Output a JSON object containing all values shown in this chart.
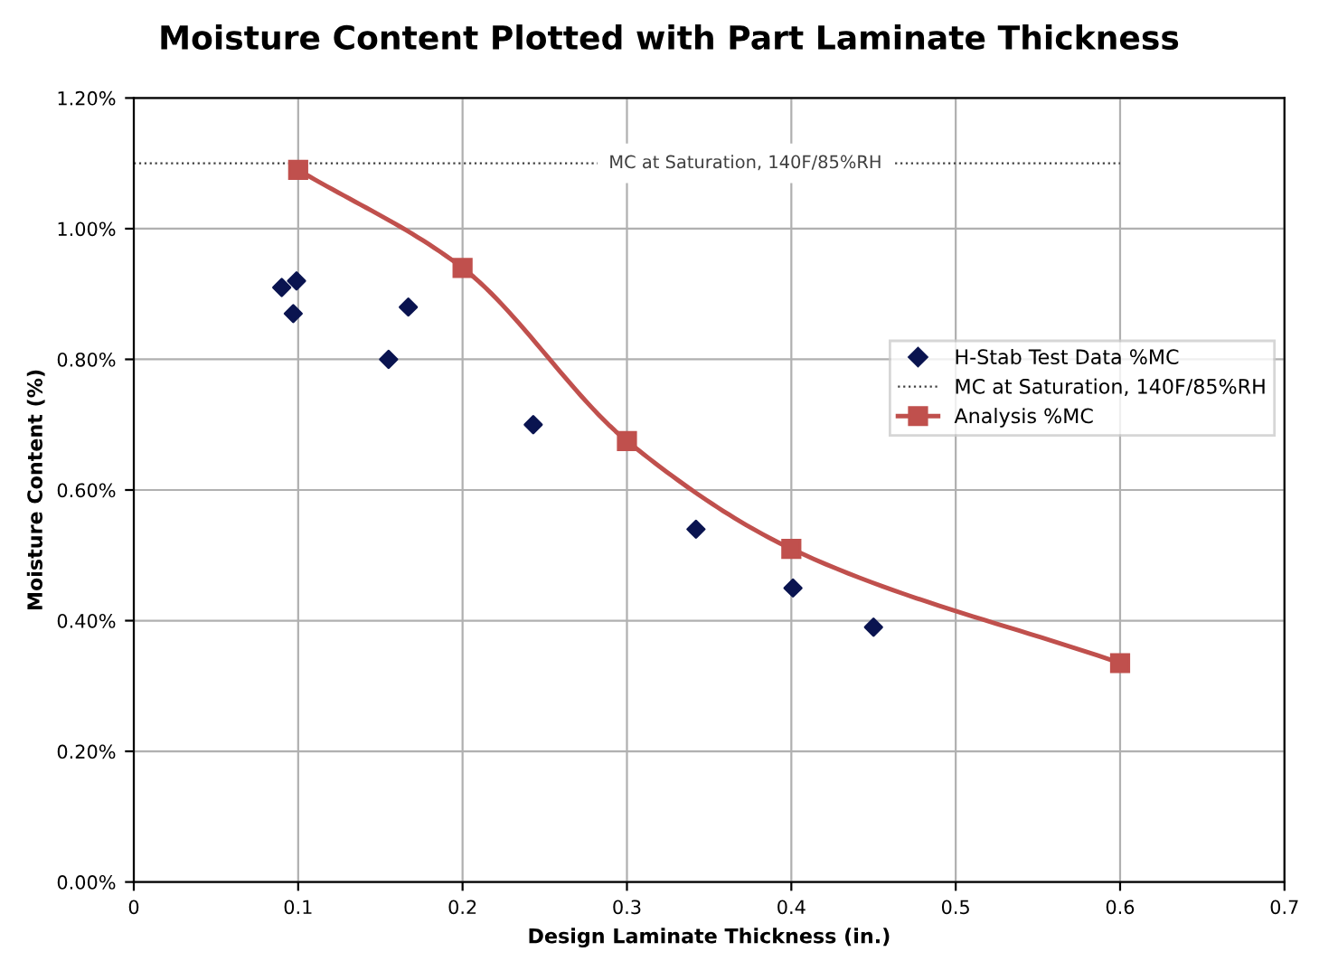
{
  "chart_data": {
    "type": "scatter",
    "title": "Moisture Content Plotted with Part Laminate Thickness",
    "xlabel": "Design Laminate Thickness (in.)",
    "ylabel": "Moisture Content (%)",
    "xlim": [
      0,
      0.7
    ],
    "xticks": [
      0,
      0.1,
      0.2,
      0.3,
      0.4,
      0.5,
      0.6,
      0.7
    ],
    "ylim": [
      0,
      1.2
    ],
    "yticks": [
      {
        "value": 0,
        "label": "0.00%"
      },
      {
        "value": 0.2,
        "label": "0.20%"
      },
      {
        "value": 0.4,
        "label": "0.40%"
      },
      {
        "value": 0.6,
        "label": "0.60%"
      },
      {
        "value": 0.8,
        "label": "0.80%"
      },
      {
        "value": 1.0,
        "label": "1.00%"
      },
      {
        "value": 1.2,
        "label": "1.20%"
      }
    ],
    "grid": true,
    "legend": "right",
    "series": [
      {
        "name": "H-Stab Test Data %MC",
        "marker": "diamond",
        "color": "#0a1450",
        "x": [
          0.09,
          0.097,
          0.099,
          0.155,
          0.167,
          0.243,
          0.342,
          0.401,
          0.45
        ],
        "values": [
          0.91,
          0.87,
          0.92,
          0.8,
          0.88,
          0.7,
          0.54,
          0.45,
          0.39
        ]
      },
      {
        "name": "Analysis %MC",
        "type": "line",
        "marker": "square",
        "line_style": "solid",
        "color": "#c0504d",
        "x": [
          0.1,
          0.2,
          0.3,
          0.4,
          0.6
        ],
        "values": [
          1.09,
          0.94,
          0.675,
          0.51,
          0.335
        ]
      }
    ],
    "ref_lines": [
      {
        "axis": "y",
        "value": 1.1,
        "label": "MC at Saturation, 140F/85%RH",
        "color": "#404040",
        "line_style": "dotted"
      }
    ]
  }
}
